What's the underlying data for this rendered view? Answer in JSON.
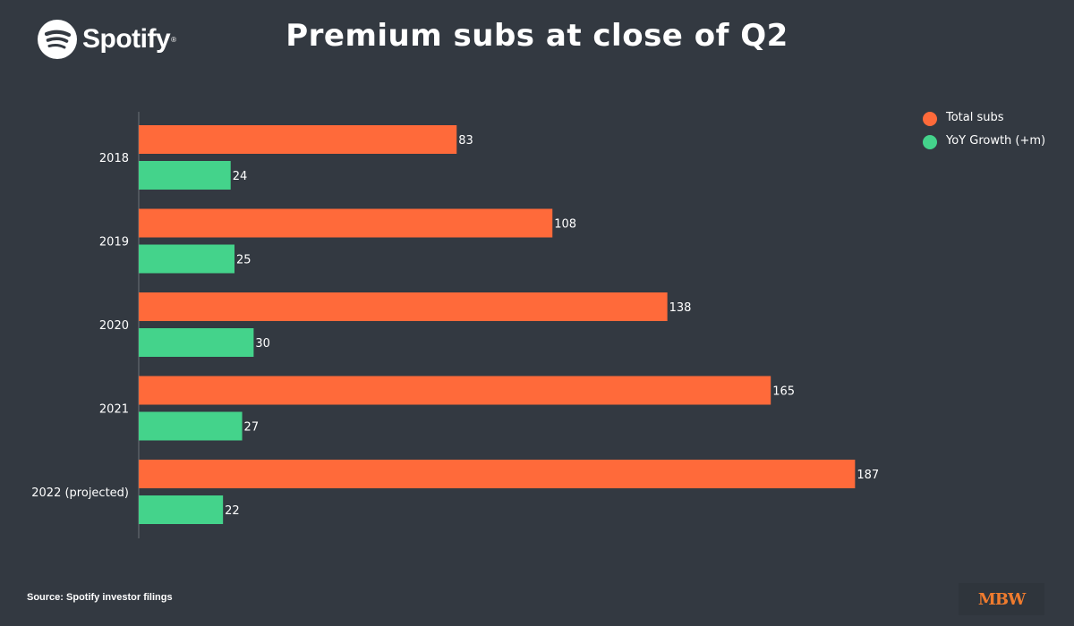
{
  "header": {
    "logo_text": "Spotify",
    "logo_mark": "®",
    "title": "Premium subs at close of Q2"
  },
  "footer": {
    "source": "Source: Spotify investor filings",
    "brand": "MBW"
  },
  "colors": {
    "background": "#333941",
    "total_subs": "#ff6a3a",
    "yoy_growth": "#44d38b"
  },
  "chart_data": {
    "type": "bar",
    "orientation": "horizontal",
    "title": "Premium subs at close of Q2",
    "categories": [
      "2018",
      "2019",
      "2020",
      "2021",
      "2022 (projected)"
    ],
    "series": [
      {
        "name": "Total subs",
        "color": "#ff6a3a",
        "values": [
          83,
          108,
          138,
          165,
          187
        ]
      },
      {
        "name": "YoY Growth (+m)",
        "color": "#44d38b",
        "values": [
          24,
          25,
          30,
          27,
          22
        ]
      }
    ],
    "xlim": [
      0,
      200
    ],
    "grid": false,
    "legend_position": "top-right",
    "data_labels": true
  },
  "legend": {
    "items": [
      {
        "label": "Total subs",
        "color": "#ff6a3a"
      },
      {
        "label": "YoY Growth (+m)",
        "color": "#44d38b"
      }
    ]
  }
}
